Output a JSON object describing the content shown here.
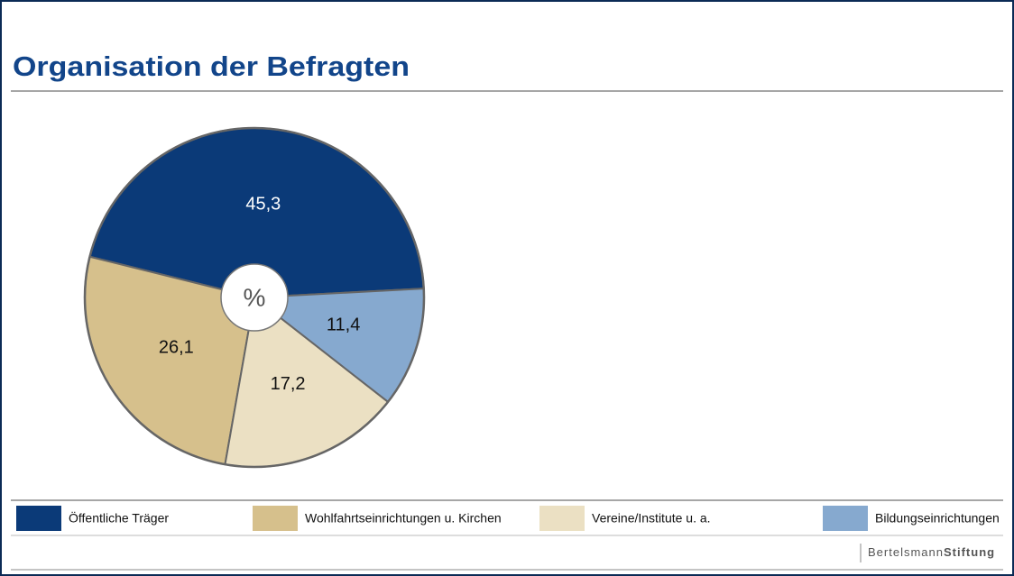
{
  "chart_data": {
    "type": "pie",
    "title": "Organisation der Befragten",
    "center_label": "%",
    "categories": [
      "Öffentliche Träger",
      "Wohlfahrtseinrichtungen u. Kirchen",
      "Vereine/Institute u. a.",
      "Bildungseinrichtungen"
    ],
    "values": [
      45.3,
      26.1,
      17.2,
      11.4
    ],
    "value_labels": [
      "45,3",
      "26,1",
      "17,2",
      "11,4"
    ],
    "colors": [
      "#0b3a78",
      "#d6c08c",
      "#ebe0c3",
      "#86a9cf"
    ],
    "legend": "bottom",
    "footer": {
      "brand_light": "Bertelsmann",
      "brand_bold": "Stiftung"
    }
  }
}
